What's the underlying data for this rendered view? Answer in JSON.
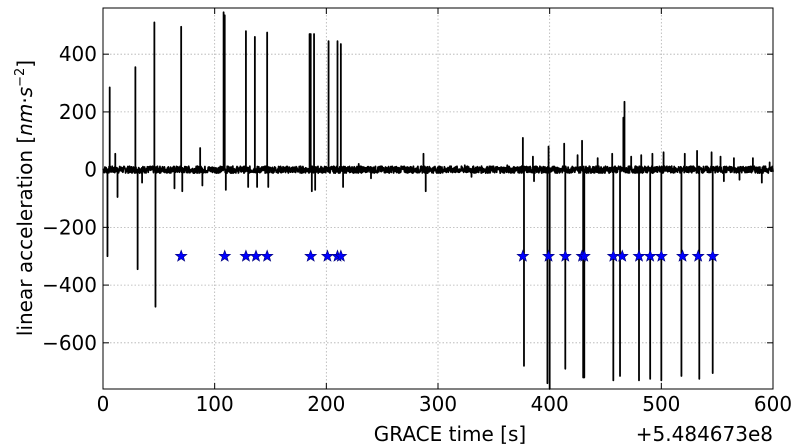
{
  "chart_data": {
    "type": "line",
    "xlabel": "GRACE time [s]",
    "ylabel_text": "linear acceleration [",
    "ylabel_unit_nm": "nm",
    "ylabel_unit_dot": "·",
    "ylabel_unit_s": "s",
    "ylabel_unit_exp": "−2",
    "ylabel_close": "]",
    "x_offset_label": "+5.484673e8",
    "xlim": [
      0,
      600
    ],
    "ylim": [
      -760,
      560
    ],
    "x_ticks": [
      0,
      100,
      200,
      300,
      400,
      500,
      600
    ],
    "x_tick_labels": [
      "0",
      "100",
      "200",
      "300",
      "400",
      "500",
      "600"
    ],
    "y_ticks": [
      -600,
      -400,
      -200,
      0,
      200,
      400
    ],
    "y_tick_labels": [
      "−600",
      "−400",
      "−200",
      "0",
      "200",
      "400"
    ],
    "grid": true,
    "series": [
      {
        "style": "black-line",
        "spikes": [
          {
            "x": 4,
            "y": -300
          },
          {
            "x": 6,
            "y": 285
          },
          {
            "x": 11,
            "y": 55
          },
          {
            "x": 13,
            "y": -95
          },
          {
            "x": 29,
            "y": 355
          },
          {
            "x": 31,
            "y": -345
          },
          {
            "x": 35,
            "y": -45
          },
          {
            "x": 46,
            "y": 510
          },
          {
            "x": 47,
            "y": -475
          },
          {
            "x": 64,
            "y": -65
          },
          {
            "x": 70,
            "y": 495
          },
          {
            "x": 71,
            "y": -75
          },
          {
            "x": 87,
            "y": 75
          },
          {
            "x": 89,
            "y": -55
          },
          {
            "x": 108,
            "y": 545
          },
          {
            "x": 109,
            "y": 535
          },
          {
            "x": 110,
            "y": -70
          },
          {
            "x": 128,
            "y": 480
          },
          {
            "x": 130,
            "y": -60
          },
          {
            "x": 136,
            "y": 460
          },
          {
            "x": 138,
            "y": -60
          },
          {
            "x": 147,
            "y": 475
          },
          {
            "x": 148,
            "y": -60
          },
          {
            "x": 185,
            "y": 470
          },
          {
            "x": 186,
            "y": 470
          },
          {
            "x": 187,
            "y": -75
          },
          {
            "x": 189,
            "y": 470
          },
          {
            "x": 190,
            "y": -70
          },
          {
            "x": 202,
            "y": 445
          },
          {
            "x": 210,
            "y": 445
          },
          {
            "x": 213,
            "y": 435
          },
          {
            "x": 215,
            "y": -60
          },
          {
            "x": 229,
            "y": 20
          },
          {
            "x": 240,
            "y": -30
          },
          {
            "x": 287,
            "y": 55
          },
          {
            "x": 289,
            "y": -75
          },
          {
            "x": 324,
            "y": 15
          },
          {
            "x": 330,
            "y": -25
          },
          {
            "x": 362,
            "y": 15
          },
          {
            "x": 376,
            "y": 110
          },
          {
            "x": 377,
            "y": -680
          },
          {
            "x": 385,
            "y": 45
          },
          {
            "x": 386,
            "y": -40
          },
          {
            "x": 398,
            "y": -740
          },
          {
            "x": 399,
            "y": 80
          },
          {
            "x": 400,
            "y": -760
          },
          {
            "x": 413,
            "y": 90
          },
          {
            "x": 414,
            "y": -690
          },
          {
            "x": 425,
            "y": 50
          },
          {
            "x": 429,
            "y": 100
          },
          {
            "x": 430,
            "y": -720
          },
          {
            "x": 431,
            "y": -720
          },
          {
            "x": 443,
            "y": 40
          },
          {
            "x": 456,
            "y": 55
          },
          {
            "x": 457,
            "y": -730
          },
          {
            "x": 463,
            "y": -715
          },
          {
            "x": 466,
            "y": 180
          },
          {
            "x": 467,
            "y": 235
          },
          {
            "x": 473,
            "y": 45
          },
          {
            "x": 480,
            "y": -730
          },
          {
            "x": 482,
            "y": 50
          },
          {
            "x": 490,
            "y": -725
          },
          {
            "x": 492,
            "y": 55
          },
          {
            "x": 500,
            "y": -730
          },
          {
            "x": 502,
            "y": 60
          },
          {
            "x": 518,
            "y": -715
          },
          {
            "x": 521,
            "y": 55
          },
          {
            "x": 532,
            "y": 65
          },
          {
            "x": 534,
            "y": -725
          },
          {
            "x": 545,
            "y": 60
          },
          {
            "x": 546,
            "y": -705
          },
          {
            "x": 553,
            "y": 45
          },
          {
            "x": 556,
            "y": -40
          },
          {
            "x": 565,
            "y": 40
          },
          {
            "x": 570,
            "y": -35
          },
          {
            "x": 582,
            "y": 40
          },
          {
            "x": 590,
            "y": -45
          },
          {
            "x": 597,
            "y": 25
          }
        ],
        "noise_amplitude": 12
      },
      {
        "style": "blue-star-markers",
        "x": [
          70,
          109,
          128,
          137,
          147,
          186,
          201,
          210,
          213,
          376,
          399,
          414,
          429,
          431,
          457,
          465,
          480,
          490,
          500,
          519,
          533,
          546
        ],
        "y": [
          -300,
          -300,
          -300,
          -300,
          -300,
          -300,
          -300,
          -300,
          -300,
          -300,
          -300,
          -300,
          -300,
          -300,
          -300,
          -300,
          -300,
          -300,
          -300,
          -300,
          -300,
          -300
        ]
      }
    ],
    "colors": {
      "line": "#000000",
      "star_fill": "#0000ff",
      "star_stroke": "#00007a",
      "grid": "#b0b0b0"
    }
  }
}
